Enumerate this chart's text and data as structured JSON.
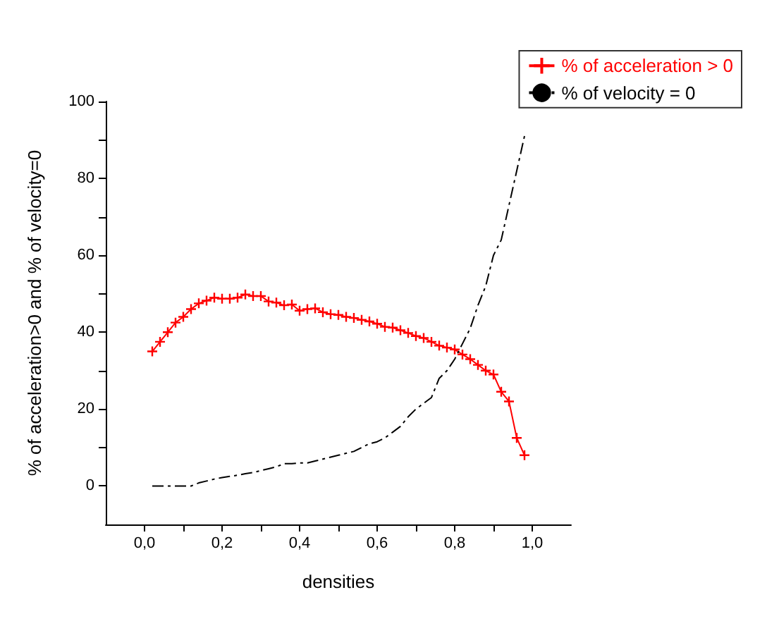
{
  "chart_data": {
    "type": "line",
    "xlabel": "densities",
    "ylabel": "% of acceleration>0 and % of velocity=0",
    "x": [
      0.02,
      0.04,
      0.06,
      0.08,
      0.1,
      0.12,
      0.14,
      0.16,
      0.18,
      0.2,
      0.22,
      0.24,
      0.26,
      0.28,
      0.3,
      0.32,
      0.34,
      0.36,
      0.38,
      0.4,
      0.42,
      0.44,
      0.46,
      0.48,
      0.5,
      0.52,
      0.54,
      0.56,
      0.58,
      0.6,
      0.62,
      0.64,
      0.66,
      0.68,
      0.7,
      0.72,
      0.74,
      0.76,
      0.78,
      0.8,
      0.82,
      0.84,
      0.86,
      0.88,
      0.9,
      0.92,
      0.94,
      0.96,
      0.98
    ],
    "series": [
      {
        "name": "% of acceleration > 0",
        "color": "#ff0000",
        "marker": "cross",
        "line_style": "solid",
        "values": [
          35,
          37.5,
          40,
          42.5,
          44,
          46,
          47.5,
          48.2,
          49,
          48.7,
          48.7,
          49,
          49.8,
          49.4,
          49.4,
          48,
          47.7,
          47,
          47.2,
          45.6,
          46,
          46.2,
          45.2,
          44.7,
          44.5,
          44,
          43.7,
          43.2,
          42.8,
          42.2,
          41.4,
          41.2,
          40.5,
          39.8,
          39,
          38.5,
          37.5,
          36.5,
          36,
          35.5,
          34.2,
          33,
          31.5,
          30,
          29,
          24.5,
          22,
          12.5,
          8
        ]
      },
      {
        "name": "% of velocity = 0",
        "color": "#000000",
        "marker": "none",
        "line_style": "dashed",
        "values": [
          0,
          0,
          0,
          0,
          0,
          0,
          0.8,
          1.3,
          1.8,
          2.2,
          2.5,
          2.8,
          3.2,
          3.5,
          4,
          4.5,
          5,
          5.8,
          5.8,
          6,
          6,
          6.5,
          7,
          7.5,
          8,
          8.5,
          9,
          10,
          11,
          11.5,
          12.5,
          14,
          15.5,
          18,
          20,
          21.5,
          23,
          28,
          30,
          33,
          37,
          41,
          47,
          52,
          60,
          64,
          73,
          82,
          91
        ]
      }
    ],
    "xlim": [
      -0.1,
      1.1
    ],
    "xticks": [
      {
        "value": 0,
        "label": "0,0"
      },
      {
        "value": 0.1,
        "label": null
      },
      {
        "value": 0.2,
        "label": "0,2"
      },
      {
        "value": 0.3,
        "label": null
      },
      {
        "value": 0.4,
        "label": "0,4"
      },
      {
        "value": 0.5,
        "label": null
      },
      {
        "value": 0.6,
        "label": "0,6"
      },
      {
        "value": 0.7,
        "label": null
      },
      {
        "value": 0.8,
        "label": "0,8"
      },
      {
        "value": 0.9,
        "label": null
      },
      {
        "value": 1.0,
        "label": "1,0"
      }
    ],
    "ylim": [
      -10,
      100
    ],
    "yticks": [
      0,
      {
        "value": 10,
        "label": null
      },
      20,
      {
        "value": 30,
        "label": null
      },
      40,
      {
        "value": 50,
        "label": null
      },
      60,
      {
        "value": 70,
        "label": null
      },
      80,
      {
        "value": 90,
        "label": null
      },
      100
    ],
    "grid": false,
    "legend": "top right"
  }
}
